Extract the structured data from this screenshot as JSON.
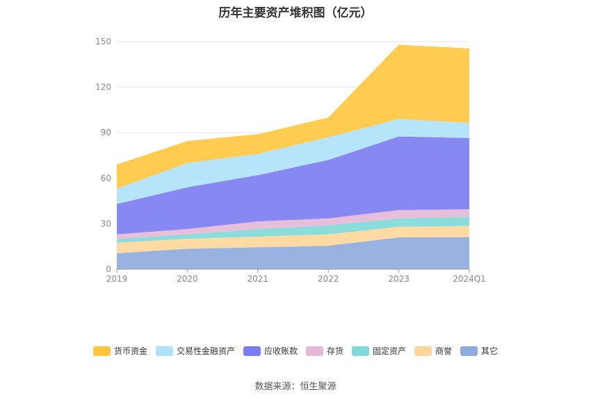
{
  "chart_data": {
    "type": "area",
    "stacked": true,
    "title": "历年主要资产堆积图（亿元）",
    "categories": [
      "2019",
      "2020",
      "2021",
      "2022",
      "2023",
      "2024Q1"
    ],
    "ylim": [
      0,
      150
    ],
    "yticks": [
      0,
      30,
      60,
      90,
      120,
      150
    ],
    "grid": true,
    "legend_position": "bottom",
    "series": [
      {
        "name": "其它",
        "color": "#8faadc",
        "values": [
          10.5,
          13.5,
          14.5,
          15.5,
          21.0,
          21.2
        ]
      },
      {
        "name": "商誉",
        "color": "#ffd699",
        "values": [
          7.0,
          6.5,
          7.0,
          7.5,
          7.0,
          7.3
        ]
      },
      {
        "name": "固定资产",
        "color": "#80d8d8",
        "values": [
          2.5,
          3.0,
          5.0,
          6.0,
          5.5,
          6.0
        ]
      },
      {
        "name": "存货",
        "color": "#e6b8d6",
        "values": [
          3.0,
          3.5,
          5.0,
          4.5,
          5.5,
          5.0
        ]
      },
      {
        "name": "应收账款",
        "color": "#7b7bf2",
        "values": [
          20.0,
          27.5,
          30.5,
          38.5,
          48.5,
          47.0
        ]
      },
      {
        "name": "交易性金融资产",
        "color": "#aee1fb",
        "values": [
          10.0,
          16.0,
          14.0,
          15.0,
          11.5,
          10.0
        ]
      },
      {
        "name": "货币资金",
        "color": "#ffc53d",
        "values": [
          16.0,
          14.5,
          13.0,
          13.0,
          49.0,
          49.0
        ]
      }
    ]
  },
  "source_label": "数据来源：恒生聚源"
}
